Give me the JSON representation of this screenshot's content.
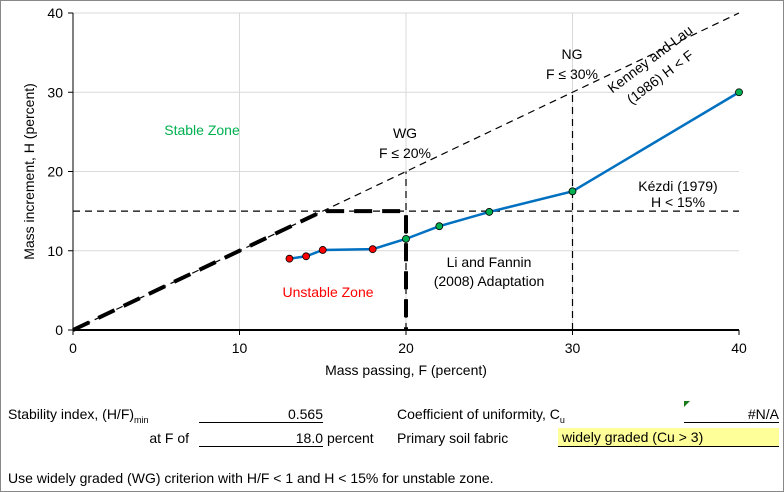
{
  "chart_data": {
    "type": "line",
    "xlabel": "Mass passing, F (percent)",
    "ylabel": "Mass increment, H (percent)",
    "xlim": [
      0,
      40
    ],
    "ylim": [
      0,
      40
    ],
    "xticks": [
      0,
      10,
      20,
      30,
      40
    ],
    "yticks": [
      0,
      10,
      20,
      30,
      40
    ],
    "grid": true,
    "series": [
      {
        "color": "#0070C0",
        "x": [
          13,
          14,
          15,
          18,
          20,
          22,
          25,
          30,
          40
        ],
        "y": [
          9,
          9.3,
          10.1,
          10.2,
          11.5,
          13.1,
          14.9,
          17.5,
          30
        ],
        "marker_colors": [
          "#FF0000",
          "#FF0000",
          "#FF0000",
          "#FF0000",
          "#00B050",
          "#00B050",
          "#00B050",
          "#00B050",
          "#00B050"
        ]
      }
    ],
    "reference_lines": [
      {
        "style": "thin-dashed",
        "x": [
          0,
          40
        ],
        "y": [
          0,
          40
        ]
      },
      {
        "style": "thin-dashed",
        "x": [
          0,
          40
        ],
        "y": [
          15,
          15
        ]
      },
      {
        "style": "thin-dashed",
        "x": [
          20,
          20
        ],
        "y": [
          0,
          20
        ]
      },
      {
        "style": "thin-dashed",
        "x": [
          30,
          30
        ],
        "y": [
          0,
          30
        ]
      },
      {
        "style": "thick-dashed",
        "x": [
          0,
          15,
          20,
          20
        ],
        "y": [
          0,
          15,
          15,
          0
        ]
      }
    ],
    "annotations": [
      {
        "text": "Stable Zone",
        "color": "#00B050"
      },
      {
        "text": "Unstable Zone",
        "color": "#FF0000"
      },
      {
        "text": "WG",
        "color": "#000"
      },
      {
        "text": "F ≤ 20%",
        "color": "#000"
      },
      {
        "text": "NG",
        "color": "#000"
      },
      {
        "text": "F ≤ 30%",
        "color": "#000"
      },
      {
        "text": "Kézdi (1979)",
        "color": "#000"
      },
      {
        "text": "H < 15%",
        "color": "#000"
      },
      {
        "text": "Li and Fannin",
        "color": "#000"
      },
      {
        "text": "(2008) Adaptation",
        "color": "#000"
      },
      {
        "text": "Kenney and Lau",
        "color": "#000"
      },
      {
        "text": "(1986) H < F",
        "color": "#000"
      }
    ]
  },
  "summary": {
    "stability_label": "Stability index, (H/F)",
    "stability_sub": "min",
    "stability_value": "0.565",
    "atf_label": "at F of",
    "atf_value": "18.0",
    "atf_unit": "percent",
    "cu_label": "Coefficient of uniformity, C",
    "cu_sub": "u",
    "cu_value": "#N/A",
    "fabric_label": "Primary soil fabric",
    "fabric_value": "widely graded (Cu > 3)",
    "note": "Use widely graded (WG) criterion with H/F < 1 and H < 15% for unstable zone."
  }
}
